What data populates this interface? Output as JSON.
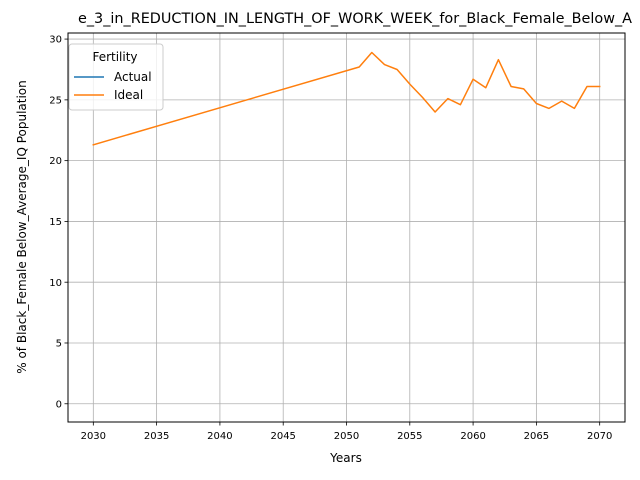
{
  "chart_data": {
    "type": "line",
    "title": "e_3_in_REDUCTION_IN_LENGTH_OF_WORK_WEEK_for_Black_Female_Below_A",
    "xlabel": "Years",
    "ylabel": "% of Black_Female Below_Average_IQ Population",
    "xlim": [
      2028.0,
      2072.0
    ],
    "ylim": [
      -1.5,
      30.5
    ],
    "xticks": [
      2030,
      2035,
      2040,
      2045,
      2050,
      2055,
      2060,
      2065,
      2070
    ],
    "yticks": [
      0,
      5,
      10,
      15,
      20,
      25,
      30
    ],
    "grid": true,
    "legend": {
      "title": "Fertility",
      "placement": "upper-left"
    },
    "series": [
      {
        "name": "Actual",
        "color": "#1f77b4",
        "x": [],
        "y": []
      },
      {
        "name": "Ideal",
        "color": "#ff7f0e",
        "x": [
          2030,
          2051,
          2052,
          2053,
          2054,
          2055,
          2056,
          2057,
          2058,
          2059,
          2060,
          2061,
          2062,
          2063,
          2064,
          2065,
          2066,
          2067,
          2068,
          2069,
          2070
        ],
        "y": [
          21.3,
          27.7,
          28.9,
          27.9,
          27.5,
          26.3,
          25.2,
          24.0,
          25.1,
          24.6,
          26.7,
          26.0,
          28.3,
          26.1,
          25.9,
          24.7,
          24.3,
          24.9,
          24.3,
          26.1,
          26.1
        ]
      }
    ]
  }
}
